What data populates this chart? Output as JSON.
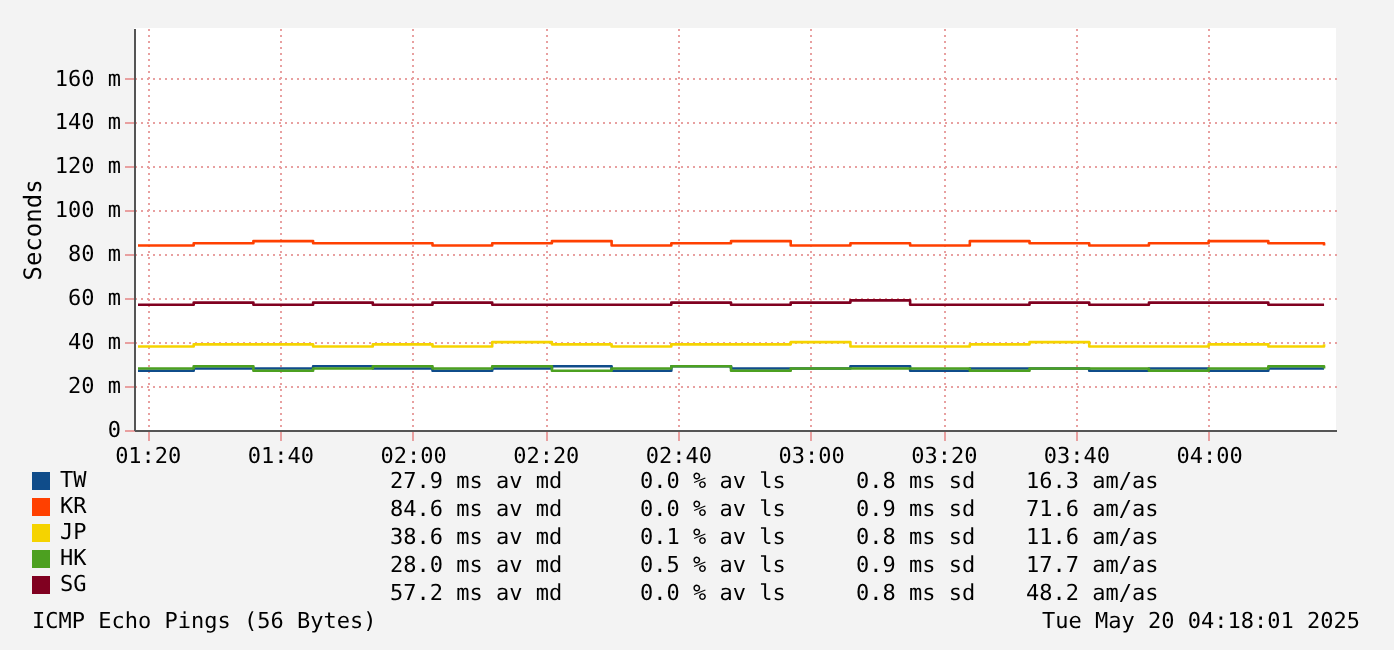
{
  "chart_data": {
    "type": "step",
    "ylabel": "Seconds",
    "xlim": [
      1.3,
      4.32
    ],
    "ylim": [
      0,
      183
    ],
    "xticks": [
      {
        "value": 1.3333,
        "label": "01:20"
      },
      {
        "value": 1.6667,
        "label": "01:40"
      },
      {
        "value": 2,
        "label": "02:00"
      },
      {
        "value": 2.3333,
        "label": "02:20"
      },
      {
        "value": 2.6667,
        "label": "02:40"
      },
      {
        "value": 3,
        "label": "03:00"
      },
      {
        "value": 3.3333,
        "label": "03:20"
      },
      {
        "value": 3.6667,
        "label": "03:40"
      },
      {
        "value": 4,
        "label": "04:00"
      }
    ],
    "yticks": [
      {
        "value": 0,
        "label": "0"
      },
      {
        "value": 20,
        "label": "20 m"
      },
      {
        "value": 40,
        "label": "40 m"
      },
      {
        "value": 60,
        "label": "60 m"
      },
      {
        "value": 80,
        "label": "80 m"
      },
      {
        "value": 100,
        "label": "100 m"
      },
      {
        "value": 120,
        "label": "120 m"
      },
      {
        "value": 140,
        "label": "140 m"
      },
      {
        "value": 160,
        "label": "160 m"
      }
    ],
    "grid": true,
    "legend": "bottom",
    "x": [
      1.31,
      1.45,
      1.6,
      1.75,
      1.9,
      2.05,
      2.2,
      2.35,
      2.5,
      2.65,
      2.8,
      2.95,
      3.1,
      3.25,
      3.4,
      3.55,
      3.7,
      3.85,
      4.0,
      4.15,
      4.29
    ],
    "series": [
      {
        "name": "TW",
        "color": "#0f4c8a",
        "values": [
          27,
          28,
          28,
          29,
          28,
          27,
          28,
          29,
          27,
          29,
          28,
          28,
          29,
          27,
          28,
          28,
          27,
          28,
          27,
          28,
          28
        ]
      },
      {
        "name": "KR",
        "color": "#ff4000",
        "values": [
          84,
          85,
          86,
          85,
          85,
          84,
          85,
          86,
          84,
          85,
          86,
          84,
          85,
          84,
          86,
          85,
          84,
          85,
          86,
          85,
          84
        ]
      },
      {
        "name": "JP",
        "color": "#f5d300",
        "values": [
          38,
          39,
          39,
          38,
          39,
          38,
          40,
          39,
          38,
          39,
          39,
          40,
          38,
          38,
          39,
          40,
          38,
          38,
          39,
          38,
          39
        ]
      },
      {
        "name": "HK",
        "color": "#4ca020",
        "values": [
          28,
          29,
          27,
          28,
          29,
          28,
          29,
          27,
          28,
          29,
          27,
          28,
          28,
          28,
          27,
          28,
          28,
          27,
          28,
          29,
          28
        ]
      },
      {
        "name": "SG",
        "color": "#800020",
        "values": [
          57,
          58,
          57,
          58,
          57,
          58,
          57,
          57,
          57,
          58,
          57,
          58,
          59,
          57,
          57,
          58,
          57,
          58,
          58,
          57,
          57
        ]
      }
    ],
    "annotations": [
      "27.9 ms av md",
      "0.0 % av ls",
      "0.8 ms sd",
      "16.3 am/as",
      "84.6 ms av md",
      "0.0 % av ls",
      "0.9 ms sd",
      "71.6 am/as",
      "38.6 ms av md",
      "0.1 % av ls",
      "0.8 ms sd",
      "11.6 am/as",
      "28.0 ms av md",
      "0.5 % av ls",
      "0.9 ms sd",
      "17.7 am/as",
      "57.2 ms av md",
      "0.0 % av ls",
      "0.8 ms sd",
      "48.2 am/as",
      "ICMP Echo Pings (56 Bytes)",
      "Tue May 20 04:18:01 2025"
    ]
  }
}
